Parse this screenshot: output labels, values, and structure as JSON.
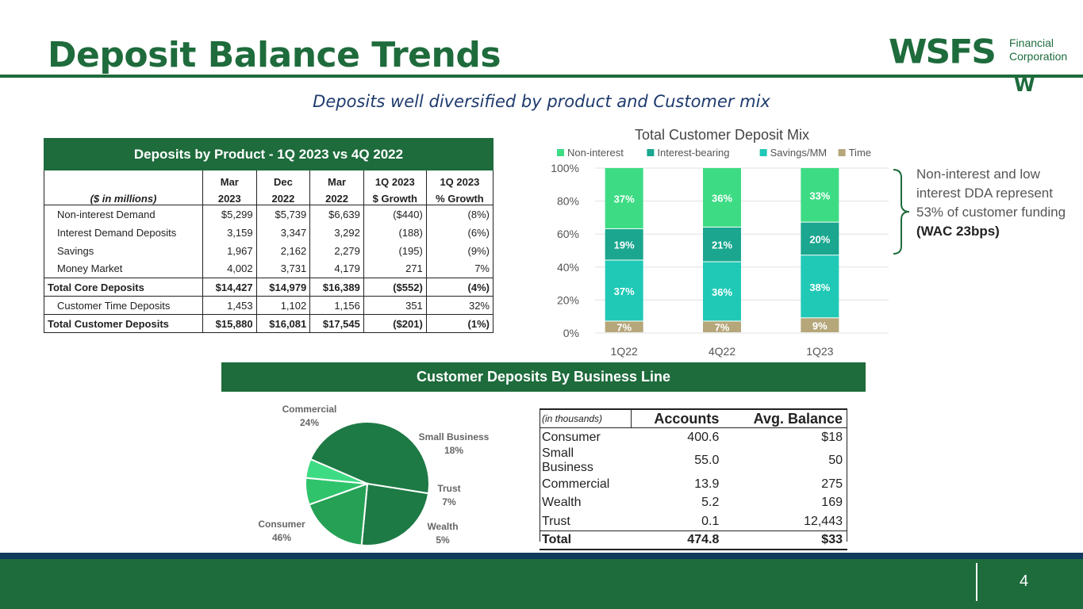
{
  "title": "Deposit Balance Trends",
  "subtitle": "Deposits well diversified by product and Customer mix",
  "logo": {
    "main": "WSFS",
    "line1": "Financial",
    "line2": "Corporation",
    "mark": "W"
  },
  "product_table": {
    "title": "Deposits by Product - 1Q 2023 vs 4Q 2022",
    "unit_label": "($ in millions)",
    "col_top": [
      "Mar",
      "Dec",
      "Mar",
      "1Q 2023",
      "1Q 2023"
    ],
    "col_bottom": [
      "2023",
      "2022",
      "2022",
      "$ Growth",
      "% Growth"
    ],
    "rows": [
      {
        "label": "Non-interest Demand",
        "values": [
          "$5,299",
          "$5,739",
          "$6,639",
          "($440)",
          "(8%)"
        ]
      },
      {
        "label": "Interest Demand Deposits",
        "values": [
          "3,159",
          "3,347",
          "3,292",
          "(188)",
          "(6%)"
        ]
      },
      {
        "label": "Savings",
        "values": [
          "1,967",
          "2,162",
          "2,279",
          "(195)",
          "(9%)"
        ]
      },
      {
        "label": "Money Market",
        "values": [
          "4,002",
          "3,731",
          "4,179",
          "271",
          "7%"
        ]
      },
      {
        "label": "Total Core Deposits",
        "values": [
          "$14,427",
          "$14,979",
          "$16,389",
          "($552)",
          "(4%)"
        ]
      },
      {
        "label": "Customer Time Deposits",
        "values": [
          "1,453",
          "1,102",
          "1,156",
          "351",
          "32%"
        ]
      },
      {
        "label": "Total Customer Deposits",
        "values": [
          "$15,880",
          "$16,081",
          "$17,545",
          "($201)",
          "(1%)"
        ]
      }
    ]
  },
  "note": {
    "text": "Non-interest and low interest DDA represent 53% of customer funding",
    "bold": "(WAC 23bps)"
  },
  "business_line": {
    "title": "Customer Deposits By Business Line",
    "table": {
      "unit_label": "(in thousands)",
      "headers": [
        "Accounts",
        "Avg. Balance"
      ],
      "rows": [
        {
          "label": "Consumer",
          "accounts": "400.6",
          "avg": "$18"
        },
        {
          "label": "Small Business",
          "accounts": "55.0",
          "avg": "50"
        },
        {
          "label": "Commercial",
          "accounts": "13.9",
          "avg": "275"
        },
        {
          "label": "Wealth",
          "accounts": "5.2",
          "avg": "169"
        },
        {
          "label": "Trust",
          "accounts": "0.1",
          "avg": "12,443"
        }
      ],
      "total": {
        "label": "Total",
        "accounts": "474.8",
        "avg": "$33"
      }
    }
  },
  "page_number": "4",
  "colors": {
    "green": "#1e6b3c",
    "noninterest": "#3ddc84",
    "interest": "#1aa68f",
    "savings": "#20c9b6",
    "time": "#b5a77a"
  },
  "chart_data": [
    {
      "type": "bar",
      "stacked": true,
      "title": "Total Customer Deposit Mix",
      "categories": [
        "1Q22",
        "4Q22",
        "1Q23"
      ],
      "series": [
        {
          "name": "Time",
          "values": [
            7,
            7,
            9
          ],
          "labels": [
            "7%",
            "7%",
            "9%"
          ]
        },
        {
          "name": "Savings/MM",
          "values": [
            37,
            36,
            38
          ],
          "labels": [
            "37%",
            "36%",
            "38%"
          ]
        },
        {
          "name": "Interest-bearing",
          "values": [
            19,
            21,
            20
          ],
          "labels": [
            "19%",
            "21%",
            "20%"
          ]
        },
        {
          "name": "Non-interest",
          "values": [
            37,
            36,
            33
          ],
          "labels": [
            "37%",
            "36%",
            "33%"
          ]
        }
      ],
      "legend": [
        "Non-interest",
        "Interest-bearing",
        "Savings/MM",
        "Time"
      ],
      "yticks": [
        "0%",
        "20%",
        "40%",
        "60%",
        "80%",
        "100%"
      ],
      "ylim": [
        0,
        100
      ],
      "legend_position": "top"
    },
    {
      "type": "pie",
      "slices": [
        {
          "name": "Consumer",
          "value": 46,
          "label": "46%"
        },
        {
          "name": "Commercial",
          "value": 24,
          "label": "24%"
        },
        {
          "name": "Small Business",
          "value": 18,
          "label": "18%"
        },
        {
          "name": "Trust",
          "value": 7,
          "label": "7%"
        },
        {
          "name": "Wealth",
          "value": 5,
          "label": "5%"
        }
      ]
    }
  ]
}
